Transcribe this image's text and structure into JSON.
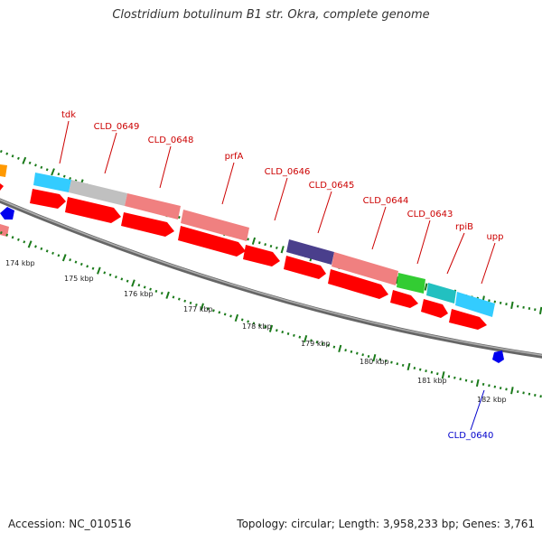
{
  "title": "Clostridium botulinum B1 str. Okra, complete genome",
  "footer": {
    "accession_label": "Accession:",
    "accession": "NC_010516",
    "topology_label": "Topology:",
    "topology": "circular",
    "length_label": "Length:",
    "length": "3,958,233 bp",
    "genes_label": "Genes:",
    "genes": "3,761"
  },
  "colors": {
    "backbone": "#808080",
    "cds_arrow": "#ff0000",
    "gene_label": "#cc0000",
    "selected_label": "#0000cc",
    "gc_ticks": "#1a7a1a",
    "ruler_ticks": "#1a7a1a"
  },
  "ruler": [
    {
      "label": "174 kbp"
    },
    {
      "label": "175 kbp"
    },
    {
      "label": "176 kbp"
    },
    {
      "label": "177 kbp"
    },
    {
      "label": "178 kbp"
    },
    {
      "label": "179 kbp"
    },
    {
      "label": "180 kbp"
    },
    {
      "label": "181 kbp"
    },
    {
      "label": "182 kbp"
    }
  ],
  "gene_labels": [
    {
      "text": "tdk"
    },
    {
      "text": "CLD_0649"
    },
    {
      "text": "CLD_0648"
    },
    {
      "text": "prfA"
    },
    {
      "text": "CLD_0646"
    },
    {
      "text": "CLD_0645"
    },
    {
      "text": "CLD_0644"
    },
    {
      "text": "CLD_0643"
    },
    {
      "text": "rpiB"
    },
    {
      "text": "upp"
    }
  ],
  "selected_gene": {
    "text": "CLD_0640"
  }
}
